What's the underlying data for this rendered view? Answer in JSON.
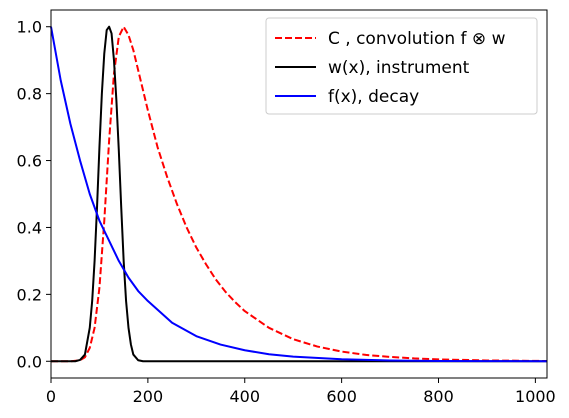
{
  "chart_data": {
    "type": "line",
    "title": "",
    "xlabel": "",
    "ylabel": "",
    "xlim": [
      0,
      1024
    ],
    "ylim": [
      -0.05,
      1.05
    ],
    "xticks": [
      0,
      200,
      400,
      600,
      800,
      1000
    ],
    "yticks": [
      0.0,
      0.2,
      0.4,
      0.6,
      0.8,
      1.0
    ],
    "grid": false,
    "legend_placement": "top-right",
    "series": [
      {
        "name": "C , convolution f ⊗ w",
        "color": "#ff0000",
        "style": "dashed",
        "x": [
          0,
          40,
          60,
          70,
          80,
          90,
          100,
          110,
          120,
          130,
          140,
          150,
          160,
          170,
          180,
          190,
          200,
          220,
          240,
          260,
          280,
          300,
          320,
          340,
          360,
          380,
          400,
          450,
          500,
          550,
          600,
          650,
          700,
          750,
          800,
          900,
          1000,
          1024
        ],
        "y": [
          0.0,
          0.0,
          0.003,
          0.012,
          0.04,
          0.1,
          0.22,
          0.42,
          0.66,
          0.86,
          0.97,
          1.0,
          0.975,
          0.93,
          0.87,
          0.81,
          0.75,
          0.64,
          0.55,
          0.47,
          0.4,
          0.34,
          0.29,
          0.245,
          0.208,
          0.177,
          0.15,
          0.1,
          0.066,
          0.044,
          0.029,
          0.019,
          0.013,
          0.0085,
          0.0056,
          0.0025,
          0.0011,
          0.0009
        ]
      },
      {
        "name": "w(x), instrument",
        "color": "#000000",
        "style": "solid",
        "x": [
          0,
          50,
          60,
          70,
          80,
          85,
          90,
          95,
          100,
          105,
          110,
          115,
          120,
          125,
          130,
          135,
          140,
          145,
          150,
          155,
          160,
          165,
          170,
          180,
          190,
          200,
          1024
        ],
        "y": [
          0.0,
          0.0,
          0.004,
          0.02,
          0.1,
          0.18,
          0.3,
          0.46,
          0.64,
          0.8,
          0.92,
          0.99,
          1.0,
          0.98,
          0.9,
          0.78,
          0.63,
          0.46,
          0.3,
          0.18,
          0.1,
          0.05,
          0.02,
          0.003,
          0.0,
          0.0,
          0.0
        ]
      },
      {
        "name": "f(x), decay",
        "color": "#0000ff",
        "style": "solid",
        "x": [
          0,
          20,
          40,
          60,
          80,
          100,
          120,
          140,
          160,
          180,
          200,
          250,
          300,
          350,
          400,
          450,
          500,
          600,
          700,
          800,
          900,
          1024
        ],
        "y": [
          1.0,
          0.84,
          0.71,
          0.6,
          0.5,
          0.42,
          0.36,
          0.3,
          0.25,
          0.21,
          0.18,
          0.115,
          0.075,
          0.05,
          0.033,
          0.021,
          0.014,
          0.006,
          0.0025,
          0.001,
          0.0004,
          0.0001
        ]
      }
    ]
  }
}
